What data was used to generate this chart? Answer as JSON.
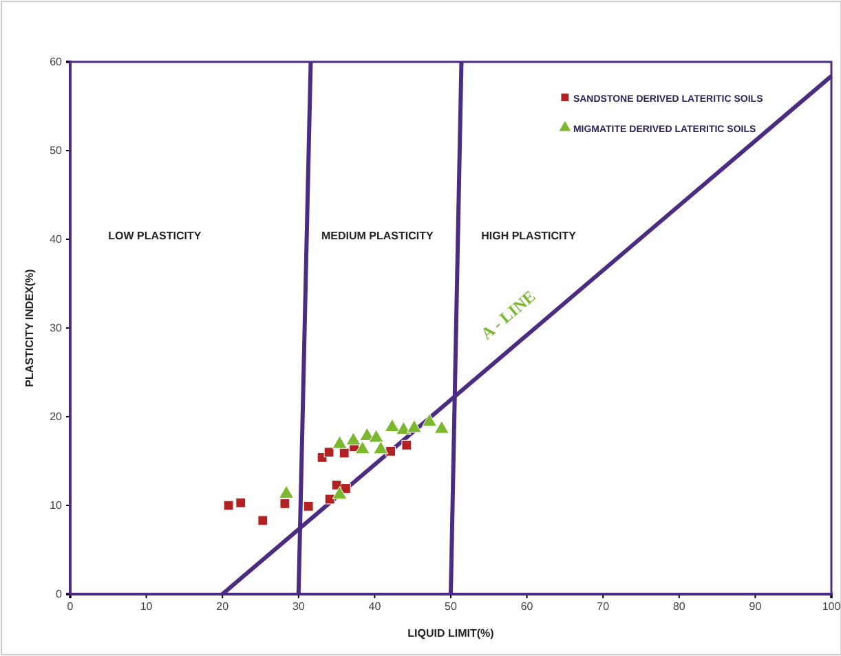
{
  "chart_data": {
    "type": "scatter",
    "xlabel": "LIQUID LIMIT(%)",
    "ylabel": "PLASTICITY INDEX(%)",
    "xlim": [
      0,
      100
    ],
    "ylim": [
      0,
      60
    ],
    "xticks": [
      0,
      10,
      20,
      30,
      40,
      50,
      60,
      70,
      80,
      90,
      100
    ],
    "yticks": [
      0,
      10,
      20,
      30,
      40,
      50,
      60
    ],
    "grid": false,
    "legend": "top right",
    "series": [
      {
        "name": "SANDSTONE DERIVED LATERITIC SOILS",
        "color": "#b22222",
        "marker": "square",
        "x": [
          20.8,
          22.4,
          25.3,
          28.2,
          31.3,
          33.1,
          34.0,
          34.1,
          35.0,
          36.2,
          36.0,
          37.3,
          42.1,
          44.2
        ],
        "values": [
          10.0,
          10.3,
          8.3,
          10.2,
          9.9,
          15.4,
          16.0,
          10.7,
          12.3,
          11.9,
          15.9,
          16.6,
          16.1,
          16.8
        ]
      },
      {
        "name": "MIGMATITE DERIVED LATERITIC SOILS",
        "color": "#7cb82f",
        "marker": "triangle",
        "x": [
          28.4,
          35.4,
          35.4,
          37.2,
          38.4,
          39.0,
          40.2,
          40.8,
          42.3,
          43.8,
          45.2,
          47.2,
          48.8
        ],
        "values": [
          11.3,
          11.2,
          16.9,
          17.3,
          16.3,
          17.8,
          17.6,
          16.3,
          18.8,
          18.5,
          18.7,
          19.4,
          18.6
        ]
      },
      {
        "type": "line",
        "color": "#4b2c82",
        "x": [
          30,
          31.6
        ],
        "values": [
          0,
          60
        ]
      },
      {
        "type": "line",
        "color": "#4b2c82",
        "x": [
          50,
          51.4
        ],
        "values": [
          0,
          60
        ]
      },
      {
        "type": "line",
        "color": "#4b2c82",
        "x": [
          20,
          100
        ],
        "values": [
          0,
          58.4
        ]
      }
    ],
    "annotations": [
      "LOW PLASTICITY",
      "MEDIUM PLASTICITY",
      "HIGH PLASTICITY",
      "A - LINE"
    ]
  }
}
